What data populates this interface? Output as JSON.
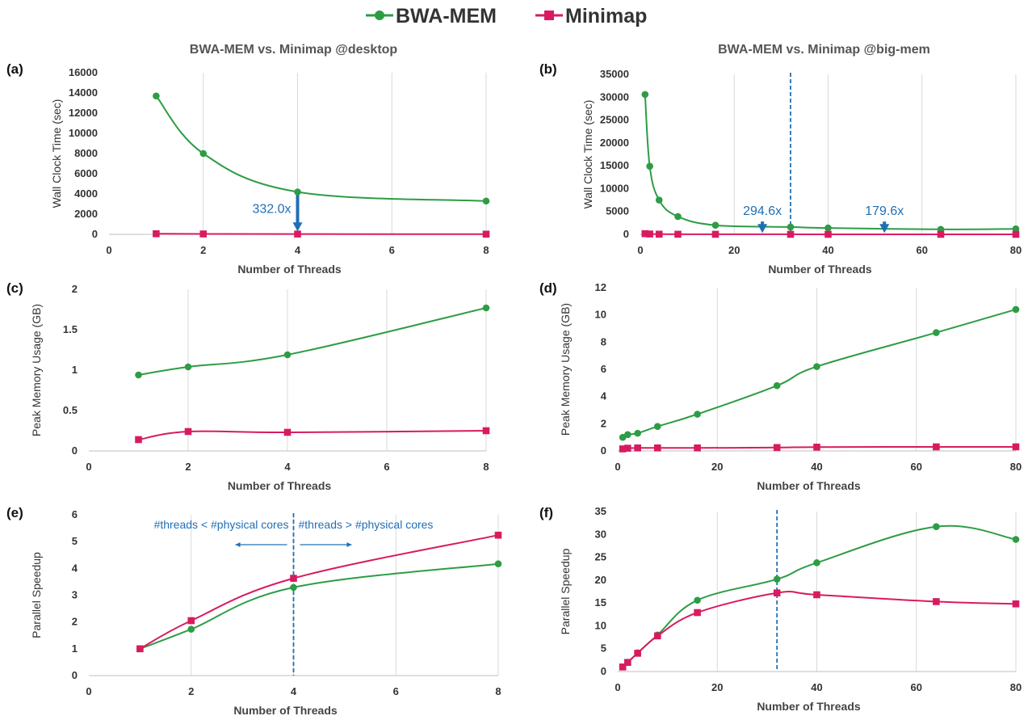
{
  "legend": {
    "placement": "top-center",
    "items": [
      {
        "name": "BWA-MEM",
        "color": "#2e9c45",
        "marker": "circle"
      },
      {
        "name": "Minimap",
        "color": "#d81b60",
        "marker": "square"
      }
    ]
  },
  "chart_data": [
    {
      "id": "a",
      "type": "line",
      "panel_label": "(a)",
      "title": "BWA-MEM vs. Minimap @desktop",
      "xlabel": "Number of Threads",
      "ylabel": "Wall Clock Time (sec)",
      "xlim": [
        0,
        8
      ],
      "ylim": [
        0,
        16000
      ],
      "xticks": [
        0,
        2,
        4,
        6,
        8
      ],
      "yticks": [
        0,
        2000,
        4000,
        6000,
        8000,
        10000,
        12000,
        14000,
        16000
      ],
      "grid": "vertical",
      "series": [
        {
          "name": "BWA-MEM",
          "x": [
            1,
            2,
            4,
            8
          ],
          "y": [
            13700,
            8000,
            4200,
            3300
          ]
        },
        {
          "name": "Minimap",
          "x": [
            1,
            2,
            4,
            8
          ],
          "y": [
            60,
            40,
            30,
            20
          ]
        }
      ],
      "annotations": [
        {
          "text": "332.0x",
          "x": 4,
          "y_from": 3900,
          "y_to": 300,
          "text_side": "left"
        }
      ]
    },
    {
      "id": "b",
      "type": "line",
      "panel_label": "(b)",
      "title": "BWA-MEM vs. Minimap @big-mem",
      "xlabel": "Number of Threads",
      "ylabel": "Wall Clock Time (sec)",
      "xlim": [
        0,
        80
      ],
      "ylim": [
        0,
        35000
      ],
      "xticks": [
        0,
        20,
        40,
        60,
        80
      ],
      "yticks": [
        0,
        5000,
        10000,
        15000,
        20000,
        25000,
        30000,
        35000
      ],
      "grid": "vertical",
      "vline": 32,
      "series": [
        {
          "name": "BWA-MEM",
          "x": [
            1,
            2,
            4,
            8,
            16,
            32,
            40,
            64,
            80
          ],
          "y": [
            30600,
            14900,
            7500,
            3900,
            2000,
            1600,
            1400,
            1100,
            1200
          ]
        },
        {
          "name": "Minimap",
          "x": [
            1,
            2,
            4,
            8,
            16,
            32,
            40,
            64,
            80
          ],
          "y": [
            150,
            80,
            40,
            25,
            15,
            10,
            8,
            6,
            5
          ]
        }
      ],
      "annotations": [
        {
          "text": "294.6x",
          "x": 26,
          "y_from": 2800,
          "y_to": 300,
          "text_side": "above"
        },
        {
          "text": "179.6x",
          "x": 52,
          "y_from": 2800,
          "y_to": 300,
          "text_side": "above"
        }
      ]
    },
    {
      "id": "c",
      "type": "line",
      "panel_label": "(c)",
      "title": "",
      "xlabel": "Number of Threads",
      "ylabel": "Peak Memory Usage (GB)",
      "xlim": [
        0,
        8
      ],
      "ylim": [
        0,
        2
      ],
      "xticks": [
        0,
        2,
        4,
        6,
        8
      ],
      "yticks": [
        0,
        0.5,
        1,
        1.5,
        2
      ],
      "grid": "vertical",
      "series": [
        {
          "name": "BWA-MEM",
          "x": [
            1,
            2,
            4,
            8
          ],
          "y": [
            0.94,
            1.04,
            1.19,
            1.77
          ]
        },
        {
          "name": "Minimap",
          "x": [
            1,
            2,
            4,
            8
          ],
          "y": [
            0.14,
            0.24,
            0.23,
            0.25
          ]
        }
      ]
    },
    {
      "id": "d",
      "type": "line",
      "panel_label": "(d)",
      "title": "",
      "xlabel": "Number of Threads",
      "ylabel": "Peak Memory Usage (GB)",
      "xlim": [
        0,
        80
      ],
      "ylim": [
        0,
        12
      ],
      "xticks": [
        0,
        20,
        40,
        60,
        80
      ],
      "yticks": [
        0,
        2,
        4,
        6,
        8,
        10,
        12
      ],
      "grid": "vertical",
      "series": [
        {
          "name": "BWA-MEM",
          "x": [
            1,
            2,
            4,
            8,
            16,
            32,
            40,
            64,
            80
          ],
          "y": [
            1.0,
            1.2,
            1.3,
            1.8,
            2.7,
            4.8,
            6.2,
            8.7,
            10.4
          ]
        },
        {
          "name": "Minimap",
          "x": [
            1,
            2,
            4,
            8,
            16,
            32,
            40,
            64,
            80
          ],
          "y": [
            0.15,
            0.2,
            0.22,
            0.22,
            0.22,
            0.25,
            0.28,
            0.3,
            0.3
          ]
        }
      ]
    },
    {
      "id": "e",
      "type": "line",
      "panel_label": "(e)",
      "title": "",
      "xlabel": "Number of Threads",
      "ylabel": "Parallel Speedup",
      "xlim": [
        0,
        8
      ],
      "ylim": [
        0,
        6
      ],
      "xticks": [
        0,
        2,
        4,
        6,
        8
      ],
      "yticks": [
        0,
        1,
        2,
        3,
        4,
        5,
        6
      ],
      "grid": "vertical",
      "vline": 4,
      "series": [
        {
          "name": "BWA-MEM",
          "x": [
            1,
            2,
            4,
            8
          ],
          "y": [
            1.0,
            1.73,
            3.29,
            4.17
          ]
        },
        {
          "name": "Minimap",
          "x": [
            1,
            2,
            4,
            8
          ],
          "y": [
            1.0,
            2.05,
            3.63,
            5.24
          ]
        }
      ],
      "region_labels": [
        {
          "text": "#threads < #physical cores",
          "side": "left"
        },
        {
          "text": "#threads > #physical cores",
          "side": "right"
        }
      ]
    },
    {
      "id": "f",
      "type": "line",
      "panel_label": "(f)",
      "title": "",
      "xlabel": "Number of Threads",
      "ylabel": "Parallel Speedup",
      "xlim": [
        0,
        80
      ],
      "ylim": [
        0,
        35
      ],
      "xticks": [
        0,
        20,
        40,
        60,
        80
      ],
      "yticks": [
        0,
        5,
        10,
        15,
        20,
        25,
        30,
        35
      ],
      "grid": "vertical",
      "vline": 32,
      "series": [
        {
          "name": "BWA-MEM",
          "x": [
            1,
            2,
            4,
            8,
            16,
            32,
            40,
            64,
            80
          ],
          "y": [
            1.0,
            2.0,
            4.1,
            8.0,
            15.6,
            20.2,
            23.8,
            31.7,
            28.9
          ]
        },
        {
          "name": "Minimap",
          "x": [
            1,
            2,
            4,
            8,
            16,
            32,
            40,
            64,
            80
          ],
          "y": [
            1.0,
            2.0,
            4.0,
            7.8,
            12.9,
            17.2,
            16.8,
            15.3,
            14.8
          ]
        }
      ]
    }
  ]
}
